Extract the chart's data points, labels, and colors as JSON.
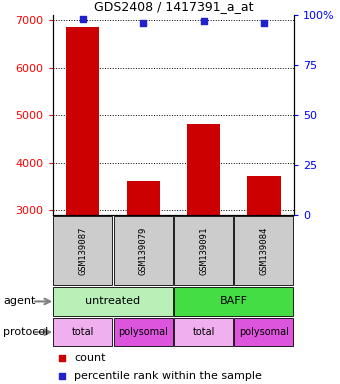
{
  "title": "GDS2408 / 1417391_a_at",
  "samples": [
    "GSM139087",
    "GSM139079",
    "GSM139091",
    "GSM139084"
  ],
  "bar_values": [
    6850,
    3620,
    4820,
    3720
  ],
  "percentile_values": [
    98,
    96,
    97,
    96
  ],
  "bar_color": "#cc0000",
  "dot_color": "#2222cc",
  "ylim_left": [
    2900,
    7100
  ],
  "ylim_right": [
    0,
    100
  ],
  "yticks_left": [
    3000,
    4000,
    5000,
    6000,
    7000
  ],
  "yticks_right": [
    0,
    25,
    50,
    75,
    100
  ],
  "agent_colors": [
    "#b8f0b8",
    "#44dd44"
  ],
  "protocol_color_total": "#f0b0f0",
  "protocol_color_polysomal": "#dd55dd",
  "sample_box_color": "#cccccc",
  "legend_count_color": "#cc0000",
  "legend_pct_color": "#2222cc",
  "x_positions": [
    0.5,
    1.5,
    2.5,
    3.5
  ],
  "bar_width": 0.55
}
